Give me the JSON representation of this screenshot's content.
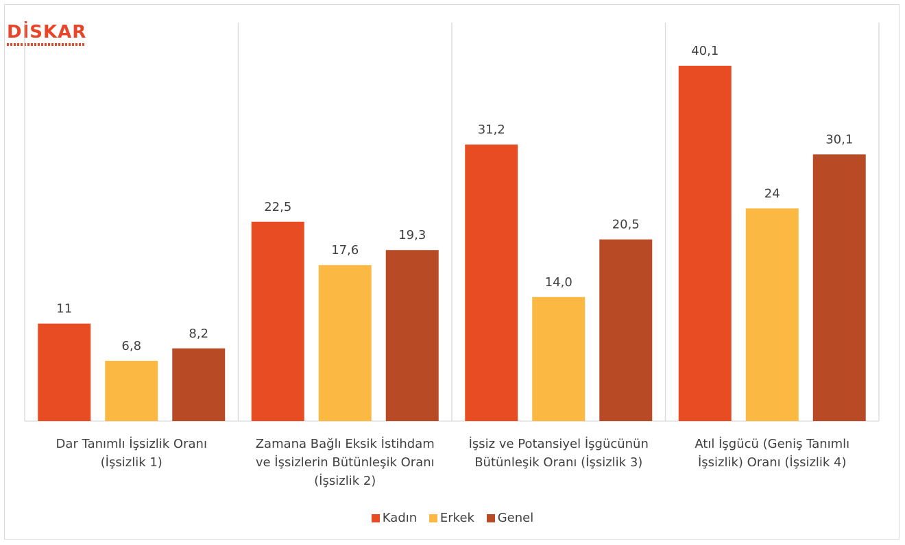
{
  "logo": {
    "text": "DİSKAR"
  },
  "chart_data": {
    "type": "bar",
    "categories": [
      "Dar Tanımlı İşsizlik Oranı (İşsizlik 1)",
      "Zamana Bağlı Eksik İstihdam ve İşsizlerin Bütünleşik Oranı (İşsizlik 2)",
      "İşsiz ve Potansiyel İşgücünün Bütünleşik Oranı (İşsizlik 3)",
      "Atıl İşgücü (Geniş Tanımlı İşsizlik) Oranı (İşsizlik 4)"
    ],
    "series": [
      {
        "name": "Kadın",
        "color": "#e84c23",
        "values": [
          11,
          22.5,
          31.2,
          40.1
        ],
        "labels": [
          "11",
          "22,5",
          "31,2",
          "40,1"
        ]
      },
      {
        "name": "Erkek",
        "color": "#fbb944",
        "values": [
          6.8,
          17.6,
          14.0,
          24
        ],
        "labels": [
          "6,8",
          "17,6",
          "14,0",
          "24"
        ]
      },
      {
        "name": "Genel",
        "color": "#b84a26",
        "values": [
          8.2,
          19.3,
          20.5,
          30.1
        ],
        "labels": [
          "8,2",
          "19,3",
          "20,5",
          "30,1"
        ]
      }
    ],
    "ylim": [
      0,
      40.1
    ],
    "grid": false,
    "legend": "bottom"
  }
}
